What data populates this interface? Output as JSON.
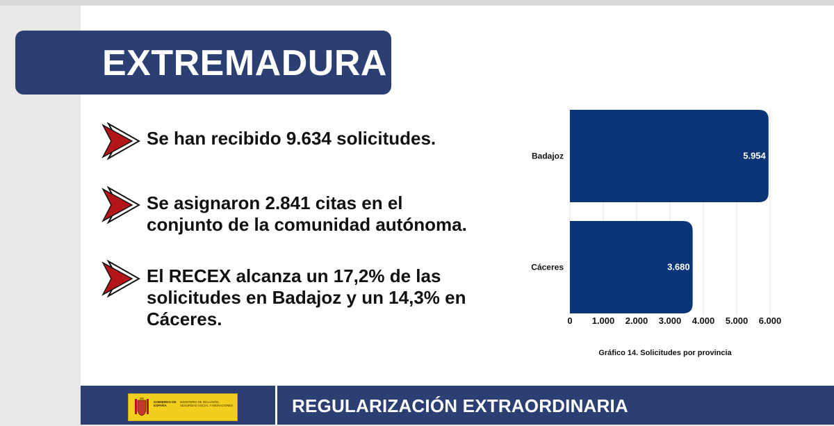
{
  "title": "EXTREMADURA",
  "bullets": [
    {
      "text": "Se han recibido 9.634 solicitudes."
    },
    {
      "text": "Se asignaron 2.841 citas en el conjunto de la comunidad autónoma."
    },
    {
      "text": "El RECEX alcanza un 17,2% de las solicitudes en Badajoz y un 14,3% en Cáceres."
    }
  ],
  "chart_data": {
    "type": "bar",
    "orientation": "horizontal",
    "categories": [
      "Badajoz",
      "Cáceres"
    ],
    "values": [
      5954,
      3680
    ],
    "value_labels": [
      "5.954",
      "3.680"
    ],
    "xlim": [
      0,
      6000
    ],
    "xticks": [
      0,
      1000,
      2000,
      3000,
      4000,
      5000,
      6000
    ],
    "xtick_labels": [
      "0",
      "1.000",
      "2.000",
      "3.000",
      "4.000",
      "5.000",
      "6.000"
    ],
    "caption": "Gráfico 14. Solicitudes por provincia",
    "grid": true,
    "bar_color": "#0b3577"
  },
  "footer": {
    "logo_line1": "GOBIERNO DE ESPAÑA",
    "logo_line2": "MINISTERIO DE INCLUSIÓN, SEGURIDAD SOCIAL Y MIGRACIONES",
    "title": "REGULARIZACIÓN EXTRAORDINARIA"
  },
  "colors": {
    "navy": "#2b3f73",
    "arrow_red": "#b3151a",
    "logo_yellow": "#f3cf1d"
  }
}
